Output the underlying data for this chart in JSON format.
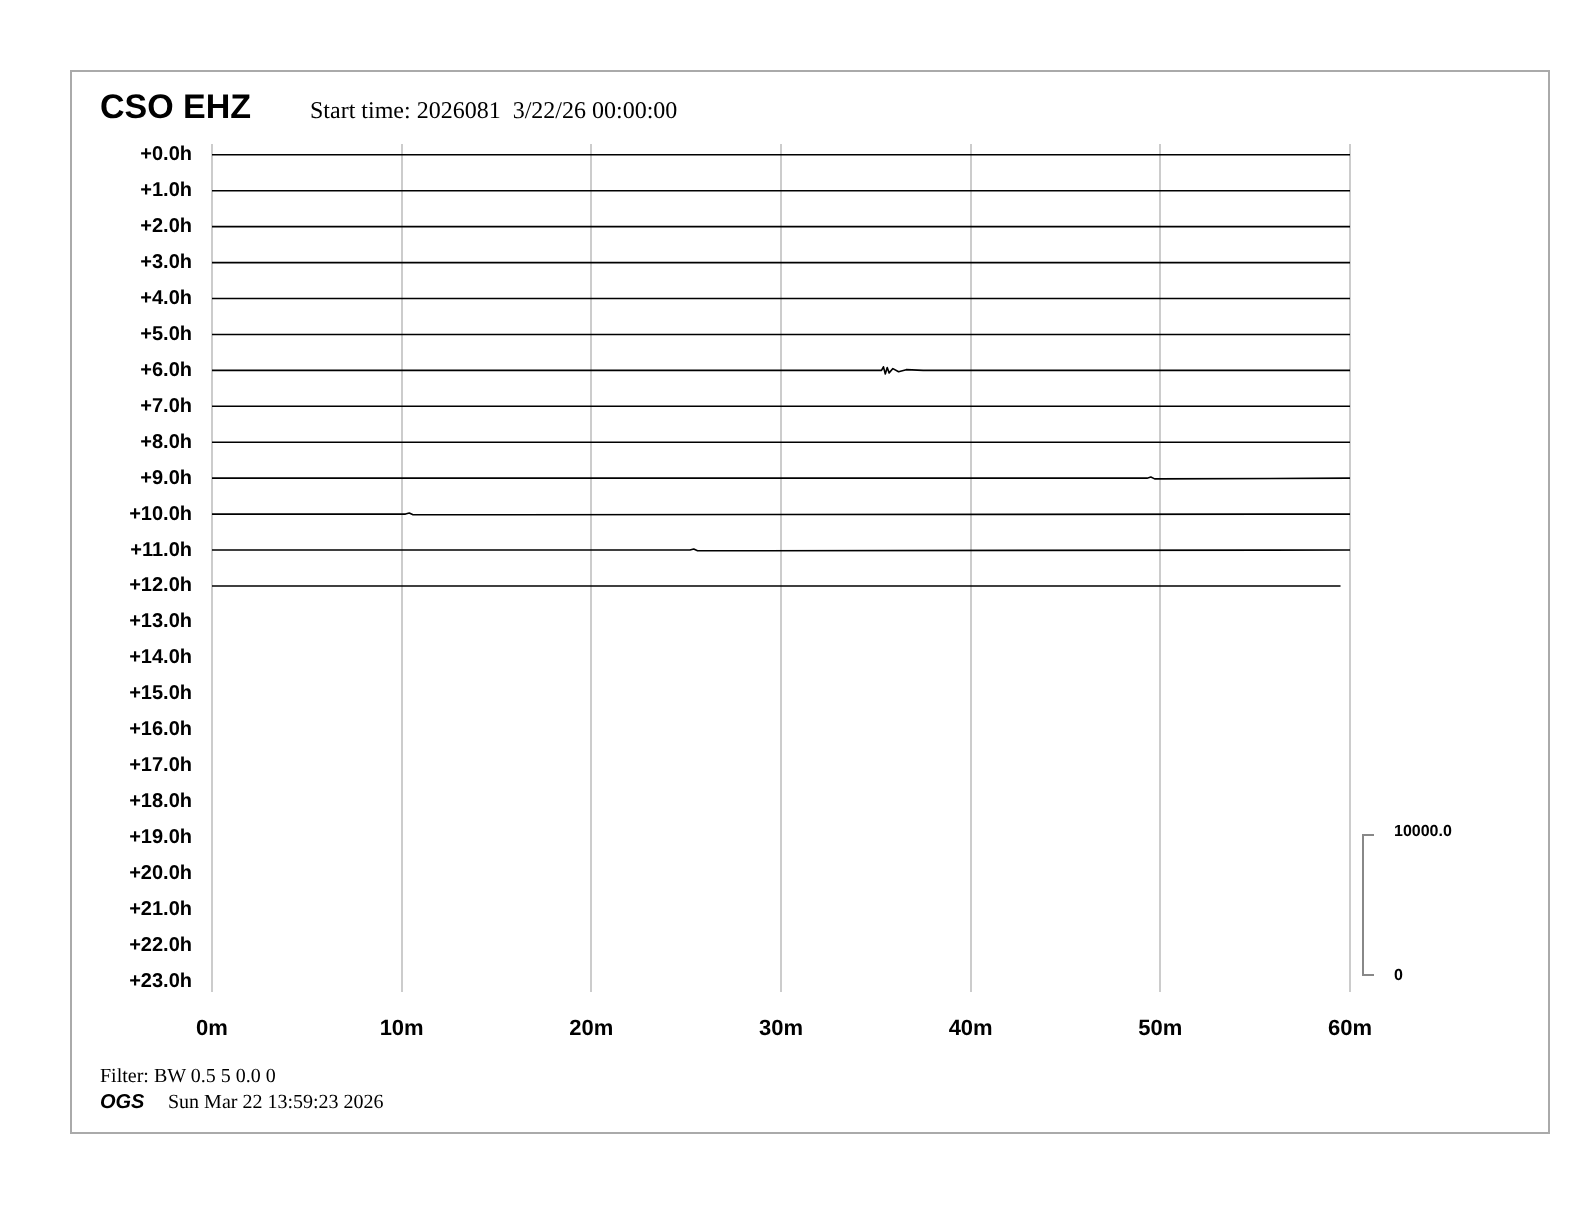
{
  "chart_data": {
    "type": "line",
    "title": "CSO EHZ",
    "subtitle": "Start time: 2026081  3/22/26 00:00:00",
    "annotations": [
      "Filter: BW 0.5 5 0.0 0",
      "OGS",
      "Sun Mar 22 13:59:23 2026",
      "10000.0",
      "0"
    ],
    "xlim": [
      0,
      60
    ],
    "xticks": [
      {
        "value": 0,
        "label": "0m"
      },
      {
        "value": 10,
        "label": "10m"
      },
      {
        "value": 20,
        "label": "20m"
      },
      {
        "value": 30,
        "label": "30m"
      },
      {
        "value": 40,
        "label": "40m"
      },
      {
        "value": 50,
        "label": "50m"
      },
      {
        "value": 60,
        "label": "60m"
      }
    ],
    "ylim": [
      23.3,
      -0.3
    ],
    "yticks": [
      {
        "value": 0,
        "label": "+0.0h"
      },
      {
        "value": 1,
        "label": "+1.0h"
      },
      {
        "value": 2,
        "label": "+2.0h"
      },
      {
        "value": 3,
        "label": "+3.0h"
      },
      {
        "value": 4,
        "label": "+4.0h"
      },
      {
        "value": 5,
        "label": "+5.0h"
      },
      {
        "value": 6,
        "label": "+6.0h"
      },
      {
        "value": 7,
        "label": "+7.0h"
      },
      {
        "value": 8,
        "label": "+8.0h"
      },
      {
        "value": 9,
        "label": "+9.0h"
      },
      {
        "value": 10,
        "label": "+10.0h"
      },
      {
        "value": 11,
        "label": "+11.0h"
      },
      {
        "value": 12,
        "label": "+12.0h"
      },
      {
        "value": 13,
        "label": "+13.0h"
      },
      {
        "value": 14,
        "label": "+14.0h"
      },
      {
        "value": 15,
        "label": "+15.0h"
      },
      {
        "value": 16,
        "label": "+16.0h"
      },
      {
        "value": 17,
        "label": "+17.0h"
      },
      {
        "value": 18,
        "label": "+18.0h"
      },
      {
        "value": 19,
        "label": "+19.0h"
      },
      {
        "value": 20,
        "label": "+20.0h"
      },
      {
        "value": 21,
        "label": "+21.0h"
      },
      {
        "value": 22,
        "label": "+22.0h"
      },
      {
        "value": 23,
        "label": "+23.0h"
      }
    ],
    "grid": "x",
    "marker": "none",
    "line_style": "solid",
    "series": [
      {
        "color": "#000000",
        "x": [
          0,
          60
        ],
        "values": [
          0,
          0
        ]
      },
      {
        "color": "#000000",
        "x": [
          0,
          60
        ],
        "values": [
          1,
          1
        ]
      },
      {
        "color": "#000000",
        "x": [
          0,
          60
        ],
        "values": [
          2,
          2
        ]
      },
      {
        "color": "#000000",
        "x": [
          0,
          60
        ],
        "values": [
          3,
          3
        ]
      },
      {
        "color": "#000000",
        "x": [
          0,
          60
        ],
        "values": [
          4,
          4
        ]
      },
      {
        "color": "#000000",
        "x": [
          0,
          60
        ],
        "values": [
          5,
          5
        ]
      },
      {
        "color": "#000000",
        "x": [
          0,
          35.3,
          35.4,
          35.5,
          35.6,
          35.7,
          35.9,
          36.2,
          36.6,
          37.5,
          60
        ],
        "values": [
          6,
          6,
          5.9,
          6.1,
          5.92,
          6.07,
          5.95,
          6.04,
          5.98,
          6,
          6
        ]
      },
      {
        "color": "#000000",
        "x": [
          0,
          60
        ],
        "values": [
          7,
          7
        ]
      },
      {
        "color": "#000000",
        "x": [
          0,
          60
        ],
        "values": [
          8,
          8
        ]
      },
      {
        "color": "#000000",
        "x": [
          0,
          49.3,
          49.5,
          49.7,
          60
        ],
        "values": [
          9,
          9,
          8.97,
          9.02,
          9
        ]
      },
      {
        "color": "#000000",
        "x": [
          0,
          10.2,
          10.4,
          10.6,
          60
        ],
        "values": [
          10,
          10,
          9.97,
          10.02,
          10
        ]
      },
      {
        "color": "#000000",
        "x": [
          0,
          25.2,
          25.4,
          25.6,
          60
        ],
        "values": [
          11,
          11,
          10.97,
          11.02,
          11
        ]
      },
      {
        "color": "#000000",
        "x": [
          0,
          59.5
        ],
        "values": [
          12,
          12
        ]
      }
    ]
  }
}
